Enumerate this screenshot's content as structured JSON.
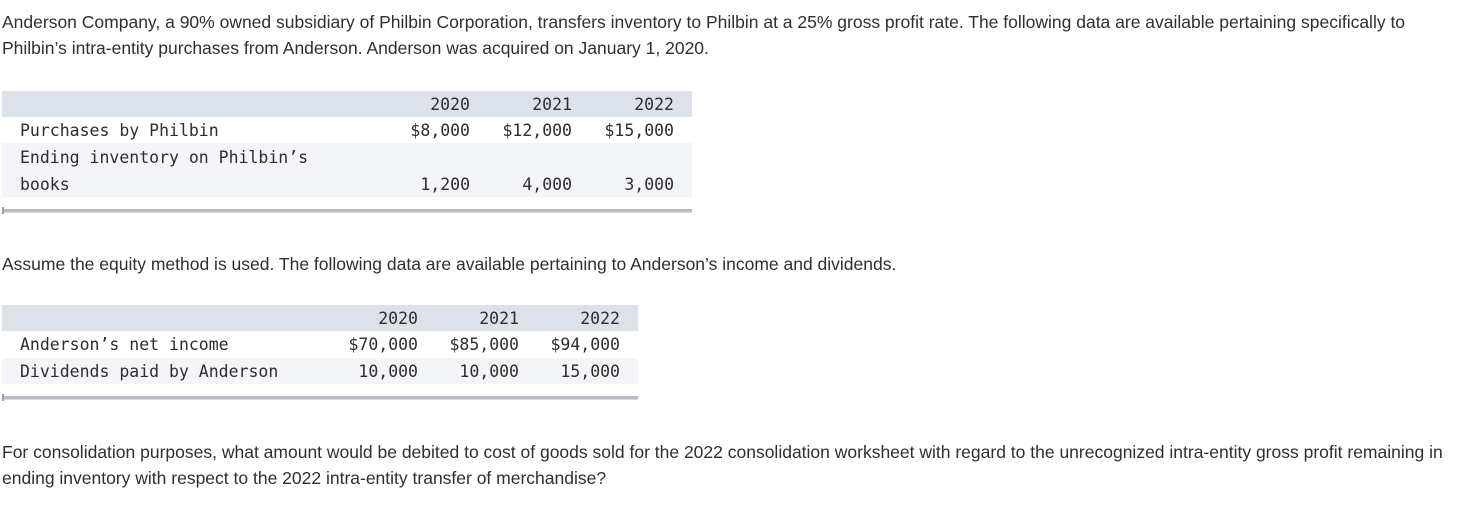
{
  "intro": "Anderson Company, a 90% owned subsidiary of Philbin Corporation, transfers inventory to Philbin at a 25% gross profit rate. The following data are available pertaining specifically to Philbin’s intra-entity purchases from Anderson. Anderson was acquired on January 1, 2020.",
  "table1": {
    "years": [
      "2020",
      "2021",
      "2022"
    ],
    "rows": [
      {
        "label": "Purchases by Philbin",
        "values": [
          "$8,000",
          "$12,000",
          "$15,000"
        ]
      },
      {
        "label_line1": "Ending inventory on Philbin’s",
        "label_line2": "books",
        "values": [
          "1,200",
          "4,000",
          "3,000"
        ]
      }
    ]
  },
  "assumption": "Assume the equity method is used. The following data are available pertaining to Anderson’s income and dividends.",
  "table2": {
    "years": [
      "2020",
      "2021",
      "2022"
    ],
    "rows": [
      {
        "label": "Anderson’s net income",
        "values": [
          "$70,000",
          "$85,000",
          "$94,000"
        ]
      },
      {
        "label": "Dividends paid by Anderson",
        "values": [
          "10,000",
          "10,000",
          "15,000"
        ]
      }
    ]
  },
  "question": "For consolidation purposes, what amount would be debited to cost of goods sold for the 2022 consolidation worksheet with regard to the unrecognized intra-entity gross profit remaining in ending inventory with respect to the 2022 intra-entity transfer of merchandise?"
}
